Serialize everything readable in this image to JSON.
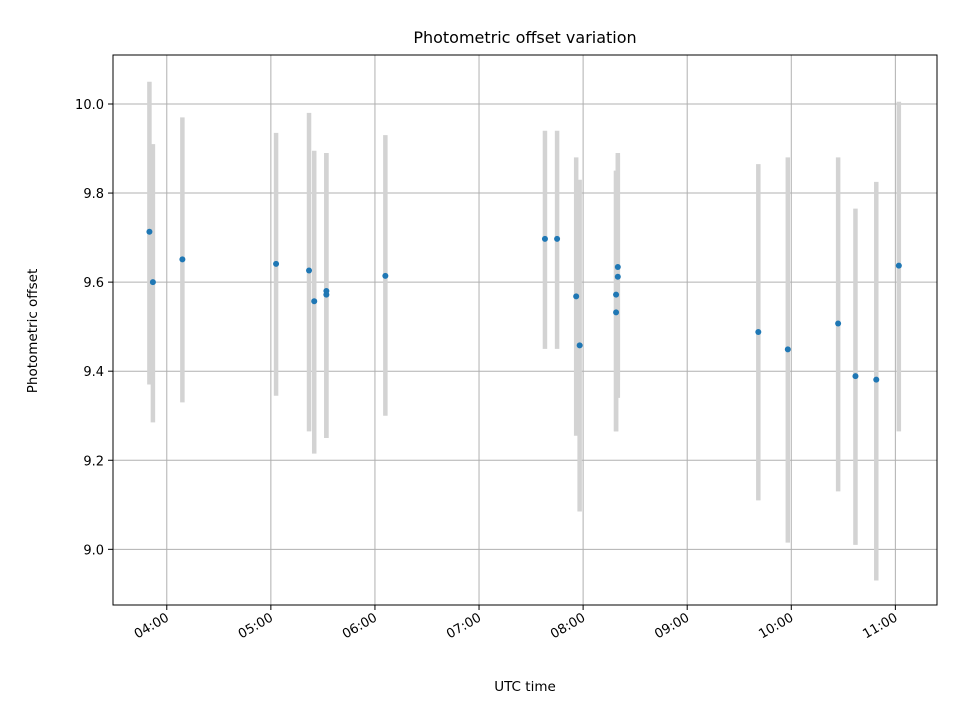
{
  "chart_data": {
    "type": "scatter",
    "title": "Photometric offset variation",
    "xlabel": "UTC time",
    "ylabel": "Photometric offset",
    "xlim": [
      "03:29",
      "11:24"
    ],
    "ylim": [
      8.875,
      10.11
    ],
    "grid": true,
    "x_tick_labels": [
      "04:00",
      "05:00",
      "06:00",
      "07:00",
      "08:00",
      "09:00",
      "10:00",
      "11:00"
    ],
    "y_tick_labels": [
      "9.0",
      "9.2",
      "9.4",
      "9.6",
      "9.8",
      "10.0"
    ],
    "y_ticks": [
      9.0,
      9.2,
      9.4,
      9.6,
      9.8,
      10.0
    ],
    "marker_color": "#1f77b4",
    "errorbar_color": "#d3d3d3",
    "points": [
      {
        "time": "03:50",
        "y": 9.713,
        "low": 9.37,
        "high": 10.05
      },
      {
        "time": "03:52",
        "y": 9.6,
        "low": 9.285,
        "high": 9.91
      },
      {
        "time": "04:09",
        "y": 9.651,
        "low": 9.33,
        "high": 9.97
      },
      {
        "time": "05:03",
        "y": 9.641,
        "low": 9.345,
        "high": 9.935
      },
      {
        "time": "05:22",
        "y": 9.626,
        "low": 9.265,
        "high": 9.98
      },
      {
        "time": "05:25",
        "y": 9.557,
        "low": 9.215,
        "high": 9.895
      },
      {
        "time": "05:32",
        "y": 9.58,
        "low": 9.25,
        "high": 9.89
      },
      {
        "time": "05:32",
        "y": 9.572,
        "low": 9.25,
        "high": 9.89
      },
      {
        "time": "06:06",
        "y": 9.614,
        "low": 9.3,
        "high": 9.93
      },
      {
        "time": "07:38",
        "y": 9.697,
        "low": 9.45,
        "high": 9.94
      },
      {
        "time": "07:45",
        "y": 9.697,
        "low": 9.45,
        "high": 9.94
      },
      {
        "time": "07:56",
        "y": 9.568,
        "low": 9.255,
        "high": 9.88
      },
      {
        "time": "07:58",
        "y": 9.458,
        "low": 9.085,
        "high": 9.83
      },
      {
        "time": "08:19",
        "y": 9.532,
        "low": 9.265,
        "high": 9.85
      },
      {
        "time": "08:19",
        "y": 9.572,
        "low": 9.265,
        "high": 9.85
      },
      {
        "time": "08:20",
        "y": 9.612,
        "low": 9.34,
        "high": 9.885
      },
      {
        "time": "08:20",
        "y": 9.634,
        "low": 9.38,
        "high": 9.89
      },
      {
        "time": "09:41",
        "y": 9.488,
        "low": 9.11,
        "high": 9.865
      },
      {
        "time": "09:58",
        "y": 9.449,
        "low": 9.015,
        "high": 9.88
      },
      {
        "time": "10:27",
        "y": 9.507,
        "low": 9.13,
        "high": 9.88
      },
      {
        "time": "10:37",
        "y": 9.389,
        "low": 9.01,
        "high": 9.765
      },
      {
        "time": "10:49",
        "y": 9.381,
        "low": 8.93,
        "high": 9.825
      },
      {
        "time": "11:02",
        "y": 9.637,
        "low": 9.265,
        "high": 10.005
      }
    ]
  }
}
